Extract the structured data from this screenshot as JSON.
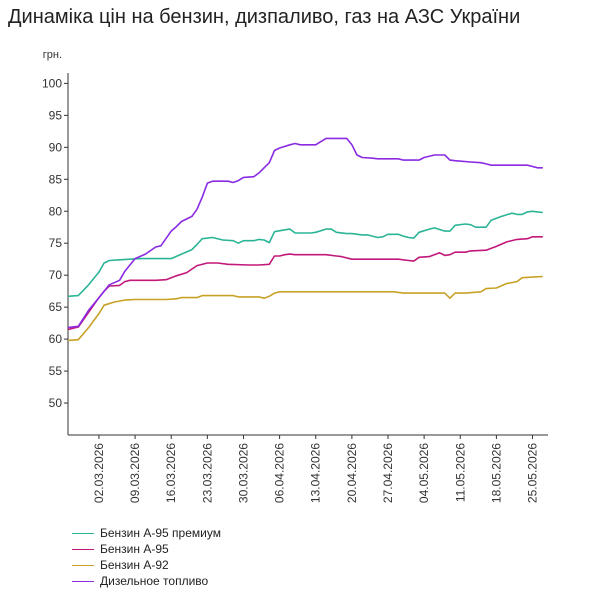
{
  "chart_data": {
    "type": "line",
    "title": "Динаміка цін на бензин, дизпаливо, газ на АЗС України",
    "ylabel": "грн.",
    "xlabel": "",
    "ylim": [
      45,
      101
    ],
    "yticks": [
      50,
      55,
      60,
      65,
      70,
      75,
      80,
      85,
      90,
      95,
      100
    ],
    "xlim": [
      "2026-02-24",
      "2026-05-28"
    ],
    "xticks": [
      "02.03.2026",
      "09.03.2026",
      "16.03.2026",
      "23.03.2026",
      "30.03.2026",
      "06.04.2026",
      "13.04.2026",
      "20.04.2026",
      "27.04.2026",
      "04.05.2026",
      "11.05.2026",
      "18.05.2026",
      "25.05.2026"
    ],
    "grid": false,
    "legend_position": "bottom-left",
    "series": [
      {
        "name": "Бензин А-95 премиум",
        "color": "#2bb596",
        "points": [
          [
            "2026-02-24",
            66.7
          ],
          [
            "2026-02-26",
            66.8
          ],
          [
            "2026-02-28",
            68.5
          ],
          [
            "2026-03-02",
            70.5
          ],
          [
            "2026-03-03",
            71.9
          ],
          [
            "2026-03-04",
            72.3
          ],
          [
            "2026-03-06",
            72.4
          ],
          [
            "2026-03-08",
            72.5
          ],
          [
            "2026-03-10",
            72.6
          ],
          [
            "2026-03-14",
            72.6
          ],
          [
            "2026-03-16",
            72.6
          ],
          [
            "2026-03-18",
            73.3
          ],
          [
            "2026-03-20",
            74.0
          ],
          [
            "2026-03-21",
            74.8
          ],
          [
            "2026-03-22",
            75.7
          ],
          [
            "2026-03-24",
            75.9
          ],
          [
            "2026-03-26",
            75.5
          ],
          [
            "2026-03-28",
            75.4
          ],
          [
            "2026-03-29",
            75.0
          ],
          [
            "2026-03-30",
            75.4
          ],
          [
            "2026-04-01",
            75.4
          ],
          [
            "2026-04-02",
            75.6
          ],
          [
            "2026-04-03",
            75.5
          ],
          [
            "2026-04-04",
            75.1
          ],
          [
            "2026-04-05",
            76.8
          ],
          [
            "2026-04-07",
            77.1
          ],
          [
            "2026-04-08",
            77.2
          ],
          [
            "2026-04-09",
            76.6
          ],
          [
            "2026-04-12",
            76.6
          ],
          [
            "2026-04-13",
            76.7
          ],
          [
            "2026-04-15",
            77.2
          ],
          [
            "2026-04-16",
            77.2
          ],
          [
            "2026-04-17",
            76.7
          ],
          [
            "2026-04-19",
            76.5
          ],
          [
            "2026-04-20",
            76.5
          ],
          [
            "2026-04-22",
            76.3
          ],
          [
            "2026-04-23",
            76.3
          ],
          [
            "2026-04-25",
            75.9
          ],
          [
            "2026-04-26",
            76.0
          ],
          [
            "2026-04-27",
            76.4
          ],
          [
            "2026-04-29",
            76.4
          ],
          [
            "2026-04-30",
            76.1
          ],
          [
            "2026-05-01",
            75.9
          ],
          [
            "2026-05-02",
            75.8
          ],
          [
            "2026-05-03",
            76.7
          ],
          [
            "2026-05-05",
            77.2
          ],
          [
            "2026-05-06",
            77.4
          ],
          [
            "2026-05-08",
            76.9
          ],
          [
            "2026-05-09",
            76.9
          ],
          [
            "2026-05-10",
            77.8
          ],
          [
            "2026-05-12",
            78.0
          ],
          [
            "2026-05-13",
            77.9
          ],
          [
            "2026-05-14",
            77.5
          ],
          [
            "2026-05-16",
            77.5
          ],
          [
            "2026-05-17",
            78.6
          ],
          [
            "2026-05-19",
            79.2
          ],
          [
            "2026-05-21",
            79.7
          ],
          [
            "2026-05-22",
            79.5
          ],
          [
            "2026-05-23",
            79.5
          ],
          [
            "2026-05-24",
            79.9
          ],
          [
            "2026-05-25",
            80.0
          ],
          [
            "2026-05-27",
            79.8
          ]
        ]
      },
      {
        "name": "Бензин А-95",
        "color": "#c2187a",
        "points": [
          [
            "2026-02-24",
            61.5
          ],
          [
            "2026-02-26",
            61.9
          ],
          [
            "2026-02-28",
            64.2
          ],
          [
            "2026-03-02",
            66.5
          ],
          [
            "2026-03-03",
            67.5
          ],
          [
            "2026-03-04",
            68.3
          ],
          [
            "2026-03-06",
            68.4
          ],
          [
            "2026-03-07",
            69.0
          ],
          [
            "2026-03-08",
            69.2
          ],
          [
            "2026-03-10",
            69.2
          ],
          [
            "2026-03-13",
            69.2
          ],
          [
            "2026-03-15",
            69.3
          ],
          [
            "2026-03-17",
            69.9
          ],
          [
            "2026-03-19",
            70.4
          ],
          [
            "2026-03-21",
            71.5
          ],
          [
            "2026-03-23",
            71.9
          ],
          [
            "2026-03-25",
            71.9
          ],
          [
            "2026-03-27",
            71.7
          ],
          [
            "2026-03-31",
            71.6
          ],
          [
            "2026-04-02",
            71.6
          ],
          [
            "2026-04-04",
            71.7
          ],
          [
            "2026-04-05",
            73.0
          ],
          [
            "2026-04-06",
            73.0
          ],
          [
            "2026-04-07",
            73.2
          ],
          [
            "2026-04-08",
            73.3
          ],
          [
            "2026-04-09",
            73.2
          ],
          [
            "2026-04-15",
            73.2
          ],
          [
            "2026-04-17",
            73.0
          ],
          [
            "2026-04-18",
            72.9
          ],
          [
            "2026-04-20",
            72.5
          ],
          [
            "2026-04-22",
            72.5
          ],
          [
            "2026-04-28",
            72.5
          ],
          [
            "2026-04-29",
            72.5
          ],
          [
            "2026-05-01",
            72.3
          ],
          [
            "2026-05-02",
            72.2
          ],
          [
            "2026-05-03",
            72.8
          ],
          [
            "2026-05-05",
            72.9
          ],
          [
            "2026-05-07",
            73.5
          ],
          [
            "2026-05-08",
            73.1
          ],
          [
            "2026-05-09",
            73.2
          ],
          [
            "2026-05-10",
            73.6
          ],
          [
            "2026-05-12",
            73.6
          ],
          [
            "2026-05-13",
            73.8
          ],
          [
            "2026-05-16",
            73.9
          ],
          [
            "2026-05-18",
            74.5
          ],
          [
            "2026-05-20",
            75.2
          ],
          [
            "2026-05-22",
            75.6
          ],
          [
            "2026-05-24",
            75.7
          ],
          [
            "2026-05-25",
            76.0
          ],
          [
            "2026-05-27",
            76.0
          ]
        ]
      },
      {
        "name": "Бензин А-92",
        "color": "#c8a227",
        "points": [
          [
            "2026-02-24",
            59.8
          ],
          [
            "2026-02-26",
            59.9
          ],
          [
            "2026-02-28",
            61.8
          ],
          [
            "2026-03-02",
            64.0
          ],
          [
            "2026-03-03",
            65.3
          ],
          [
            "2026-03-05",
            65.8
          ],
          [
            "2026-03-07",
            66.1
          ],
          [
            "2026-03-09",
            66.2
          ],
          [
            "2026-03-15",
            66.2
          ],
          [
            "2026-03-17",
            66.3
          ],
          [
            "2026-03-18",
            66.5
          ],
          [
            "2026-03-21",
            66.5
          ],
          [
            "2026-03-22",
            66.8
          ],
          [
            "2026-03-28",
            66.8
          ],
          [
            "2026-03-29",
            66.6
          ],
          [
            "2026-04-02",
            66.6
          ],
          [
            "2026-04-03",
            66.4
          ],
          [
            "2026-04-04",
            66.7
          ],
          [
            "2026-04-05",
            67.2
          ],
          [
            "2026-04-06",
            67.4
          ],
          [
            "2026-04-20",
            67.4
          ],
          [
            "2026-04-28",
            67.4
          ],
          [
            "2026-04-30",
            67.2
          ],
          [
            "2026-05-07",
            67.2
          ],
          [
            "2026-05-08",
            67.2
          ],
          [
            "2026-05-09",
            66.4
          ],
          [
            "2026-05-10",
            67.2
          ],
          [
            "2026-05-12",
            67.2
          ],
          [
            "2026-05-15",
            67.4
          ],
          [
            "2026-05-16",
            67.9
          ],
          [
            "2026-05-18",
            68.0
          ],
          [
            "2026-05-20",
            68.7
          ],
          [
            "2026-05-22",
            69.0
          ],
          [
            "2026-05-23",
            69.6
          ],
          [
            "2026-05-25",
            69.7
          ],
          [
            "2026-05-27",
            69.8
          ]
        ]
      },
      {
        "name": "Дизельное топливо",
        "color": "#8a2be2",
        "points": [
          [
            "2026-02-24",
            61.8
          ],
          [
            "2026-02-26",
            62.0
          ],
          [
            "2026-02-28",
            64.5
          ],
          [
            "2026-03-02",
            66.5
          ],
          [
            "2026-03-04",
            68.5
          ],
          [
            "2026-03-06",
            69.2
          ],
          [
            "2026-03-07",
            70.6
          ],
          [
            "2026-03-09",
            72.6
          ],
          [
            "2026-03-11",
            73.3
          ],
          [
            "2026-03-13",
            74.4
          ],
          [
            "2026-03-14",
            74.6
          ],
          [
            "2026-03-16",
            76.9
          ],
          [
            "2026-03-17",
            77.6
          ],
          [
            "2026-03-18",
            78.4
          ],
          [
            "2026-03-20",
            79.2
          ],
          [
            "2026-03-21",
            80.3
          ],
          [
            "2026-03-22",
            82.2
          ],
          [
            "2026-03-23",
            84.4
          ],
          [
            "2026-03-24",
            84.7
          ],
          [
            "2026-03-27",
            84.7
          ],
          [
            "2026-03-28",
            84.5
          ],
          [
            "2026-03-29",
            84.8
          ],
          [
            "2026-03-30",
            85.3
          ],
          [
            "2026-04-01",
            85.4
          ],
          [
            "2026-04-02",
            86.0
          ],
          [
            "2026-04-03",
            86.8
          ],
          [
            "2026-04-04",
            87.6
          ],
          [
            "2026-04-05",
            89.5
          ],
          [
            "2026-04-06",
            89.9
          ],
          [
            "2026-04-08",
            90.4
          ],
          [
            "2026-04-09",
            90.6
          ],
          [
            "2026-04-10",
            90.4
          ],
          [
            "2026-04-13",
            90.4
          ],
          [
            "2026-04-14",
            90.9
          ],
          [
            "2026-04-15",
            91.4
          ],
          [
            "2026-04-19",
            91.4
          ],
          [
            "2026-04-20",
            90.4
          ],
          [
            "2026-04-21",
            88.8
          ],
          [
            "2026-04-22",
            88.4
          ],
          [
            "2026-04-24",
            88.3
          ],
          [
            "2026-04-25",
            88.2
          ],
          [
            "2026-04-29",
            88.2
          ],
          [
            "2026-04-30",
            88.0
          ],
          [
            "2026-05-03",
            88.0
          ],
          [
            "2026-05-04",
            88.4
          ],
          [
            "2026-05-06",
            88.8
          ],
          [
            "2026-05-08",
            88.8
          ],
          [
            "2026-05-09",
            88.0
          ],
          [
            "2026-05-10",
            87.9
          ],
          [
            "2026-05-13",
            87.7
          ],
          [
            "2026-05-15",
            87.6
          ],
          [
            "2026-05-16",
            87.4
          ],
          [
            "2026-05-17",
            87.2
          ],
          [
            "2026-05-24",
            87.2
          ],
          [
            "2026-05-25",
            87.0
          ],
          [
            "2026-05-26",
            86.8
          ],
          [
            "2026-05-27",
            86.8
          ]
        ]
      }
    ]
  }
}
